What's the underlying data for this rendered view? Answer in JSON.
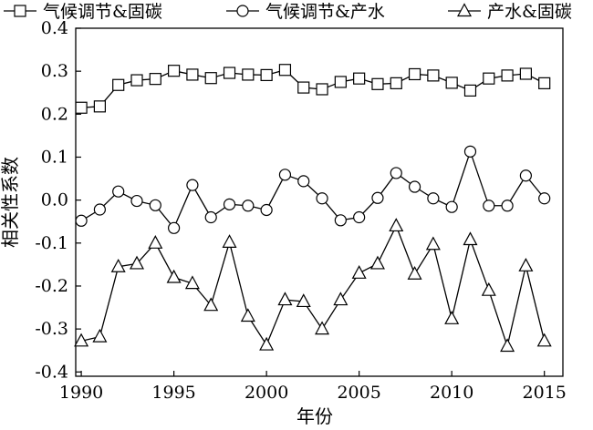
{
  "chart_data": {
    "type": "line",
    "xlabel": "年份",
    "ylabel": "相关性系数",
    "xlim": [
      1989.7,
      2016
    ],
    "ylim": [
      -0.41,
      0.4
    ],
    "xticks": [
      1990,
      1995,
      2000,
      2005,
      2010,
      2015
    ],
    "xtick_labels": [
      "1990",
      "1995",
      "2000",
      "2005",
      "2010",
      "2015"
    ],
    "yticks": [
      0.4,
      0.3,
      0.2,
      0.1,
      0.0,
      -0.1,
      -0.2,
      -0.3,
      -0.4
    ],
    "ytick_labels": [
      "0.4",
      "0.3",
      "0.2",
      "0.1",
      "0.0",
      "-0.1",
      "-0.2",
      "-0.3",
      "-0.4"
    ],
    "grid": false,
    "legend_position": "top",
    "x": [
      1990,
      1991,
      1992,
      1993,
      1994,
      1995,
      1996,
      1997,
      1998,
      1999,
      2000,
      2001,
      2002,
      2003,
      2004,
      2005,
      2006,
      2007,
      2008,
      2009,
      2010,
      2011,
      2012,
      2013,
      2014,
      2015
    ],
    "series": [
      {
        "name": "气候调节&固碳",
        "marker": "square",
        "values": [
          0.215,
          0.218,
          0.268,
          0.279,
          0.282,
          0.301,
          0.292,
          0.284,
          0.296,
          0.292,
          0.291,
          0.303,
          0.262,
          0.258,
          0.275,
          0.283,
          0.27,
          0.272,
          0.293,
          0.29,
          0.273,
          0.255,
          0.283,
          0.29,
          0.294,
          0.272
        ]
      },
      {
        "name": "气候调节&产水",
        "marker": "circle",
        "values": [
          -0.048,
          -0.022,
          0.02,
          -0.002,
          -0.012,
          -0.065,
          0.035,
          -0.04,
          -0.01,
          -0.013,
          -0.023,
          0.059,
          0.044,
          0.004,
          -0.047,
          -0.04,
          0.005,
          0.063,
          0.031,
          0.004,
          -0.016,
          0.113,
          -0.013,
          -0.013,
          0.057,
          0.004
        ]
      },
      {
        "name": "产水&固碳",
        "marker": "triangle",
        "values": [
          -0.328,
          -0.318,
          -0.155,
          -0.148,
          -0.1,
          -0.18,
          -0.194,
          -0.245,
          -0.098,
          -0.27,
          -0.337,
          -0.232,
          -0.236,
          -0.3,
          -0.232,
          -0.17,
          -0.148,
          -0.06,
          -0.172,
          -0.103,
          -0.276,
          -0.092,
          -0.21,
          -0.34,
          -0.153,
          -0.328
        ]
      }
    ]
  }
}
